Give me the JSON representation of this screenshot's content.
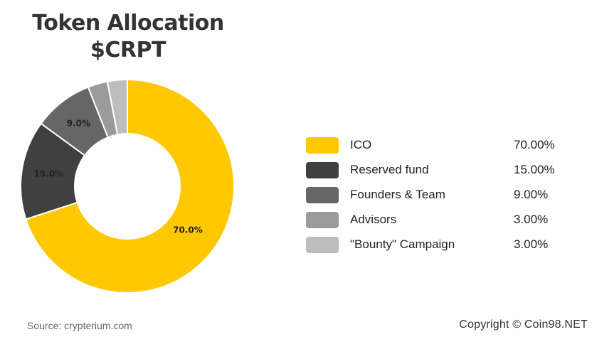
{
  "chart_data": {
    "type": "pie",
    "title": "Token Allocation",
    "subtitle": "$CRPT",
    "categories": [
      "ICO",
      "Reserved fund",
      "Founders & Team",
      "Advisors",
      "\"Bounty\" Campaign"
    ],
    "values": [
      70.0,
      15.0,
      9.0,
      3.0,
      3.0
    ],
    "data_labels": [
      "70.0%",
      "15.0%",
      "9.0%",
      "",
      ""
    ],
    "legend_values": [
      "70.00%",
      "15.00%",
      "9.00%",
      "3.00%",
      "3.00%"
    ],
    "colors": [
      "#FFC800",
      "#404040",
      "#666666",
      "#9B9B9B",
      "#BDBDBD"
    ],
    "donut": true,
    "legend_position": "right"
  },
  "footer": {
    "source": "Source: crypterium.com",
    "copyright": "Copyright © Coin98.NET"
  }
}
